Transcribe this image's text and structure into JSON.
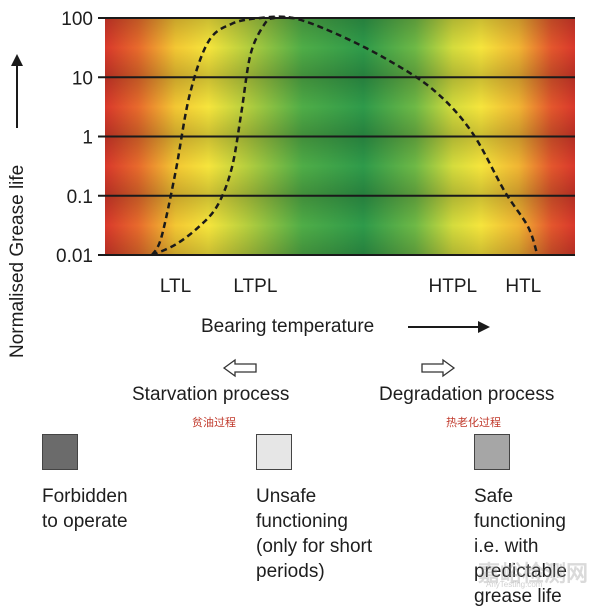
{
  "chart_data": {
    "type": "line",
    "ylabel": "Normalised Grease life",
    "xlabel": "Bearing temperature",
    "y_scale": "log",
    "ylim": [
      0.01,
      100
    ],
    "y_ticks": [
      "100",
      "10",
      "1",
      "0.1",
      "0.01"
    ],
    "y_tick_values": [
      100,
      10,
      1,
      0.1,
      0.01
    ],
    "xlim": [
      0,
      100
    ],
    "x_markers": [
      {
        "label": "LTL",
        "x": 15
      },
      {
        "label": "LTPL",
        "x": 32
      },
      {
        "label": "HTPL",
        "x": 74
      },
      {
        "label": "HTL",
        "x": 89
      }
    ],
    "background_zones": [
      "red",
      "yellow",
      "green",
      "yellow",
      "red"
    ],
    "series": [
      {
        "name": "curve-a",
        "style": "dashed",
        "points": [
          [
            10,
            0.01
          ],
          [
            12,
            0.02
          ],
          [
            15,
            0.25
          ],
          [
            18,
            5
          ],
          [
            22,
            40
          ],
          [
            27,
            80
          ],
          [
            33,
            100
          ],
          [
            40,
            100
          ],
          [
            49,
            55
          ],
          [
            60,
            20
          ],
          [
            70,
            6
          ],
          [
            78,
            1.2
          ],
          [
            85,
            0.12
          ],
          [
            90,
            0.03
          ],
          [
            92,
            0.01
          ]
        ]
      },
      {
        "name": "curve-b",
        "style": "dashed",
        "points": [
          [
            10,
            0.01
          ],
          [
            15,
            0.015
          ],
          [
            20,
            0.03
          ],
          [
            24,
            0.07
          ],
          [
            27,
            0.3
          ],
          [
            29,
            2.5
          ],
          [
            31,
            25
          ],
          [
            34,
            80
          ],
          [
            36,
            100
          ],
          [
            40,
            100
          ]
        ]
      }
    ]
  },
  "ylabel_text": "Normalised Grease life",
  "xlabel_text": "Bearing temperature",
  "process": {
    "starvation": "Starvation process",
    "starvation_cn": "贫油过程",
    "degradation": "Degradation process",
    "degradation_cn": "热老化过程"
  },
  "legend": [
    {
      "line1": "Forbidden",
      "line2": "to operate",
      "line3": "",
      "line4": "",
      "line5": "",
      "color": "#6b6b6b"
    },
    {
      "line1": "Unsafe",
      "line2": "functioning",
      "line3": "(only for short",
      "line4": "periods)",
      "line5": "",
      "color": "#e6e6e6"
    },
    {
      "line1": "Safe",
      "line2": "functioning",
      "line3": "i.e. with",
      "line4": "predictable",
      "line5": "grease life",
      "color": "#a6a6a6"
    }
  ],
  "watermark": {
    "main": "嘉峪检测网",
    "sub": "AnyTesting.com"
  },
  "colors": {
    "red": "#d9382b",
    "yellow": "#f5e23a",
    "green": "#2e9a4a",
    "grid": "#1a1a1a",
    "curve": "#1a1a1a"
  }
}
